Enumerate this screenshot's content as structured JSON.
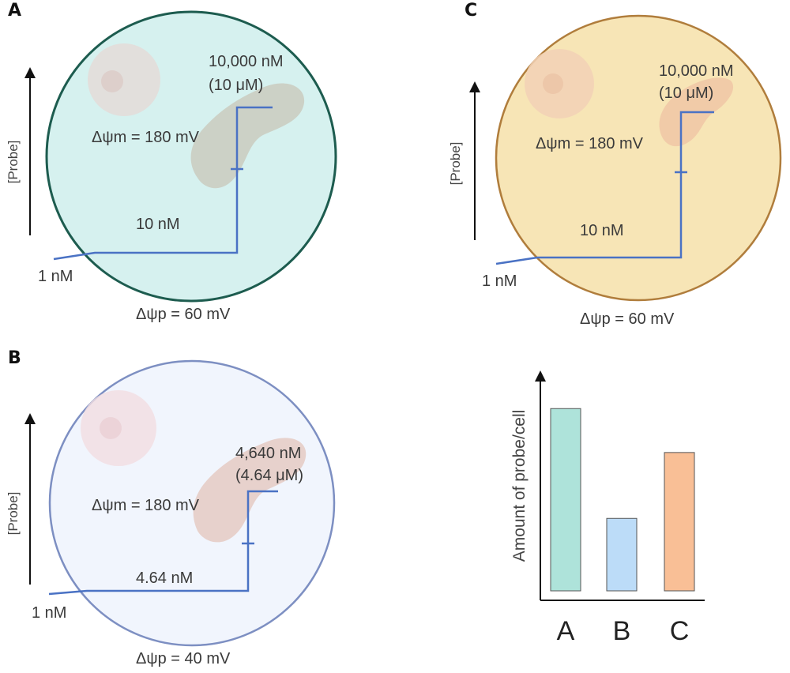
{
  "panels": {
    "a": {
      "letter": "A",
      "axis_label": "[Probe]",
      "mito_concentration": "10,000 nM",
      "mito_concentration_um": "(10 μM)",
      "delta_psi_m": "Δψm = 180 mV",
      "cytoplasm_concentration": "10 nM",
      "outside_concentration": "1 nM",
      "delta_psi_p": "Δψp = 60 mV",
      "cell_fill": "#d6f1ef",
      "cell_stroke": "#1d5c4f"
    },
    "b": {
      "letter": "B",
      "axis_label": "[Probe]",
      "mito_concentration": "4,640 nM",
      "mito_concentration_um": "(4.64 μM)",
      "delta_psi_m": "Δψm = 180 mV",
      "cytoplasm_concentration": "4.64 nM",
      "outside_concentration": "1 nM",
      "delta_psi_p": "Δψp = 40 mV",
      "cell_fill": "#f1f5fd",
      "cell_stroke": "#7d8fc2"
    },
    "c": {
      "letter": "C",
      "axis_label": "[Probe]",
      "mito_concentration": "10,000 nM",
      "mito_concentration_um": "(10 μM)",
      "delta_psi_m": "Δψm = 180 mV",
      "cytoplasm_concentration": "10 nM",
      "outside_concentration": "1 nM",
      "delta_psi_p": "Δψp = 60 mV",
      "cell_fill": "#f7e5b6",
      "cell_stroke": "#b07d3c"
    }
  },
  "chart_data": {
    "type": "bar",
    "categories": [
      "A",
      "B",
      "C"
    ],
    "values": [
      0.83,
      0.33,
      0.63
    ],
    "colors": [
      "#aee3da",
      "#bcdcf8",
      "#f9bf96"
    ],
    "ylabel": "Amount of probe/cell",
    "xlabel": "",
    "ylim": [
      0,
      1
    ]
  }
}
